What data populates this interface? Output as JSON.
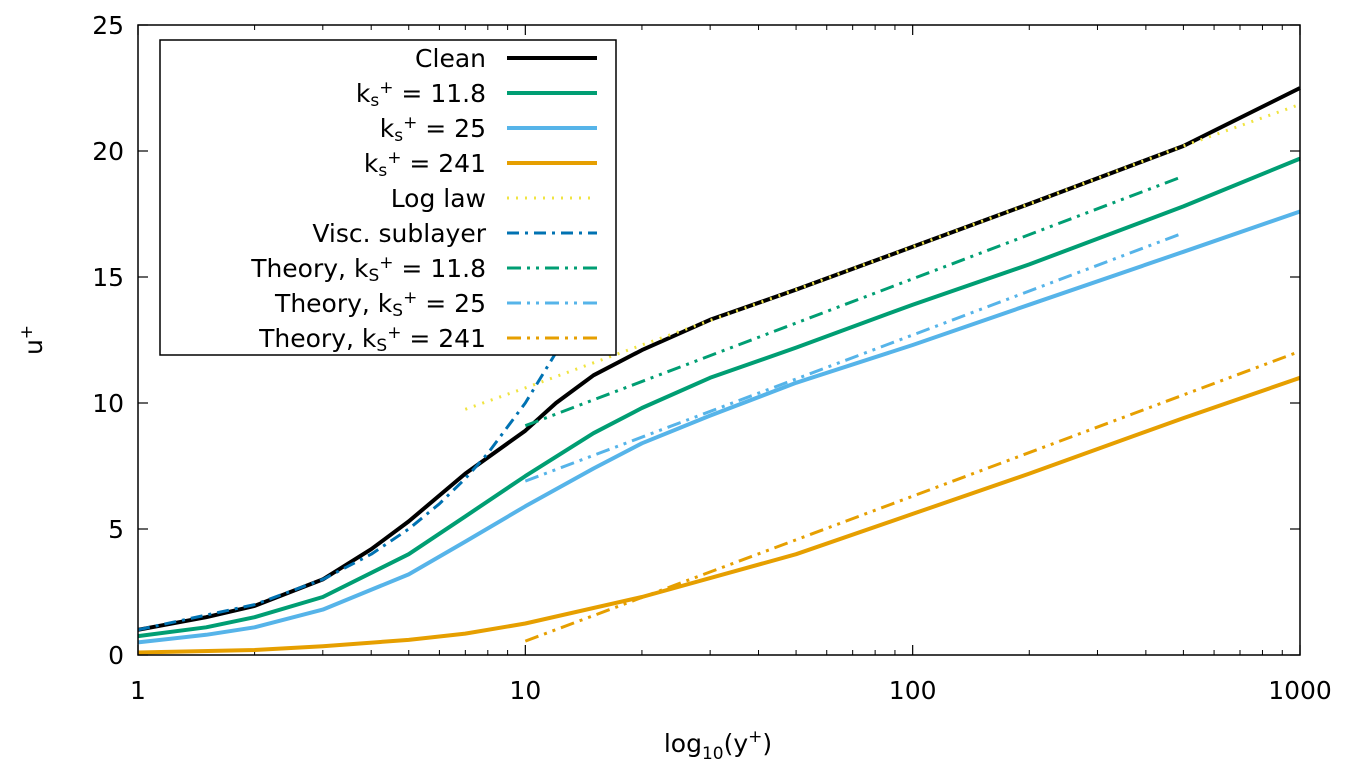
{
  "chart_data": {
    "type": "line",
    "title": "",
    "xlabel": {
      "base": "log",
      "sub": "10",
      "open": "(y",
      "sup": "+",
      "close": ")"
    },
    "ylabel": {
      "base": "u",
      "sup": "+"
    },
    "xscale": "log",
    "xlim": [
      1,
      1000
    ],
    "ylim": [
      0,
      25
    ],
    "xticks": [
      {
        "v": 1,
        "label": "1"
      },
      {
        "v": 10,
        "label": "10"
      },
      {
        "v": 100,
        "label": "100"
      },
      {
        "v": 1000,
        "label": "1000"
      }
    ],
    "yticks": [
      {
        "v": 0,
        "label": "0"
      },
      {
        "v": 5,
        "label": "5"
      },
      {
        "v": 10,
        "label": "10"
      },
      {
        "v": 15,
        "label": "15"
      },
      {
        "v": 20,
        "label": "20"
      },
      {
        "v": 25,
        "label": "25"
      }
    ],
    "legend_position": "top-left",
    "series": [
      {
        "name": "Clean",
        "label": {
          "pre": "Clean"
        },
        "color": "#000000",
        "style": "solid",
        "points": [
          [
            1,
            1.0
          ],
          [
            1.5,
            1.5
          ],
          [
            2,
            1.95
          ],
          [
            3,
            3.0
          ],
          [
            4,
            4.2
          ],
          [
            5,
            5.3
          ],
          [
            7,
            7.2
          ],
          [
            10,
            8.9
          ],
          [
            12,
            10.0
          ],
          [
            15,
            11.1
          ],
          [
            20,
            12.1
          ],
          [
            30,
            13.3
          ],
          [
            50,
            14.5
          ],
          [
            100,
            16.2
          ],
          [
            200,
            17.9
          ],
          [
            500,
            20.2
          ],
          [
            1000,
            22.5
          ]
        ]
      },
      {
        "name": "ks+ = 11.8",
        "label": {
          "pre": "k",
          "sub": "s",
          "sup": "+",
          "post": " = 11.8"
        },
        "color": "#009e73",
        "style": "solid",
        "points": [
          [
            1,
            0.75
          ],
          [
            1.5,
            1.1
          ],
          [
            2,
            1.5
          ],
          [
            3,
            2.3
          ],
          [
            5,
            4.0
          ],
          [
            7,
            5.5
          ],
          [
            10,
            7.1
          ],
          [
            15,
            8.8
          ],
          [
            20,
            9.8
          ],
          [
            30,
            11.0
          ],
          [
            50,
            12.2
          ],
          [
            100,
            13.9
          ],
          [
            200,
            15.5
          ],
          [
            500,
            17.8
          ],
          [
            1000,
            19.7
          ]
        ]
      },
      {
        "name": "ks+ = 25",
        "label": {
          "pre": "k",
          "sub": "s",
          "sup": "+",
          "post": " = 25"
        },
        "color": "#56b4e9",
        "style": "solid",
        "points": [
          [
            1,
            0.5
          ],
          [
            1.5,
            0.8
          ],
          [
            2,
            1.1
          ],
          [
            3,
            1.8
          ],
          [
            5,
            3.2
          ],
          [
            7,
            4.5
          ],
          [
            10,
            5.9
          ],
          [
            15,
            7.4
          ],
          [
            20,
            8.4
          ],
          [
            30,
            9.5
          ],
          [
            50,
            10.8
          ],
          [
            100,
            12.3
          ],
          [
            200,
            13.9
          ],
          [
            500,
            16.0
          ],
          [
            1000,
            17.6
          ]
        ]
      },
      {
        "name": "ks+ = 241",
        "label": {
          "pre": "k",
          "sub": "s",
          "sup": "+",
          "post": " = 241"
        },
        "color": "#e69f00",
        "style": "solid",
        "points": [
          [
            1,
            0.1
          ],
          [
            2,
            0.2
          ],
          [
            3,
            0.35
          ],
          [
            5,
            0.6
          ],
          [
            7,
            0.85
          ],
          [
            10,
            1.25
          ],
          [
            20,
            2.3
          ],
          [
            50,
            4.0
          ],
          [
            100,
            5.6
          ],
          [
            200,
            7.2
          ],
          [
            500,
            9.4
          ],
          [
            1000,
            11.0
          ]
        ]
      },
      {
        "name": "Log law",
        "label": {
          "pre": "Log law"
        },
        "color": "#f0e442",
        "style": "dotted",
        "points": [
          [
            7,
            9.75
          ],
          [
            10,
            10.6
          ],
          [
            20,
            12.3
          ],
          [
            50,
            14.5
          ],
          [
            100,
            16.2
          ],
          [
            200,
            17.9
          ],
          [
            500,
            20.2
          ],
          [
            1000,
            21.85
          ]
        ]
      },
      {
        "name": "Visc. sublayer",
        "label": {
          "pre": "Visc. sublayer"
        },
        "color": "#0072b2",
        "style": "dashdot",
        "points": [
          [
            1,
            1
          ],
          [
            2,
            2
          ],
          [
            3,
            3
          ],
          [
            4,
            4
          ],
          [
            5,
            5
          ],
          [
            6,
            6
          ],
          [
            7,
            7
          ],
          [
            8,
            8
          ],
          [
            10,
            10
          ],
          [
            12,
            12
          ],
          [
            14,
            14
          ],
          [
            17,
            17
          ]
        ]
      },
      {
        "name": "Theory, kS+ = 11.8",
        "label": {
          "pre": "Theory, k",
          "sub": "S",
          "sup": "+",
          "post": " = 11.8"
        },
        "color": "#009e73",
        "style": "dashdotdot",
        "points": [
          [
            10,
            9.1
          ],
          [
            500,
            19.0
          ]
        ]
      },
      {
        "name": "Theory, kS+ = 25",
        "label": {
          "pre": "Theory, k",
          "sub": "S",
          "sup": "+",
          "post": " = 25"
        },
        "color": "#56b4e9",
        "style": "dashdotdot",
        "points": [
          [
            10,
            6.9
          ],
          [
            500,
            16.75
          ]
        ]
      },
      {
        "name": "Theory, kS+ = 241",
        "label": {
          "pre": "Theory, k",
          "sub": "S",
          "sup": "+",
          "post": " = 241"
        },
        "color": "#e69f00",
        "style": "dashdotdot",
        "points": [
          [
            10,
            0.55
          ],
          [
            1000,
            12.05
          ]
        ]
      }
    ]
  }
}
